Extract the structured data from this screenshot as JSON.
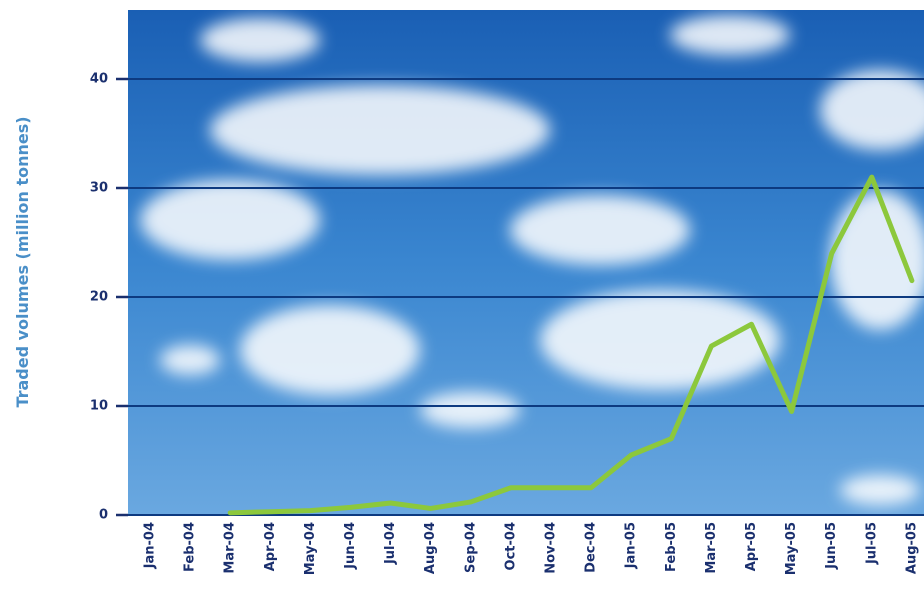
{
  "chart_data": {
    "type": "line",
    "y_label": "Traded volumes (million tonnes)",
    "categories": [
      "Jan-04",
      "Feb-04",
      "Mar-04",
      "Apr-04",
      "May-04",
      "Jun-04",
      "Jul-04",
      "Aug-04",
      "Sep-04",
      "Oct-04",
      "Nov-04",
      "Dec-04",
      "Jan-05",
      "Feb-05",
      "Mar-05",
      "Apr-05",
      "May-05",
      "Jun-05",
      "Jul-05",
      "Aug-05"
    ],
    "values": [
      null,
      null,
      0.2,
      0.3,
      0.4,
      0.7,
      1.1,
      0.6,
      1.2,
      2.5,
      2.5,
      2.5,
      5.5,
      7,
      15.5,
      17.5,
      9.5,
      24,
      31,
      21.5
    ],
    "color": "#8cc83c",
    "ylim": [
      0,
      46
    ],
    "yticks": [
      0,
      10,
      20,
      30,
      40
    ],
    "grid": true
  }
}
